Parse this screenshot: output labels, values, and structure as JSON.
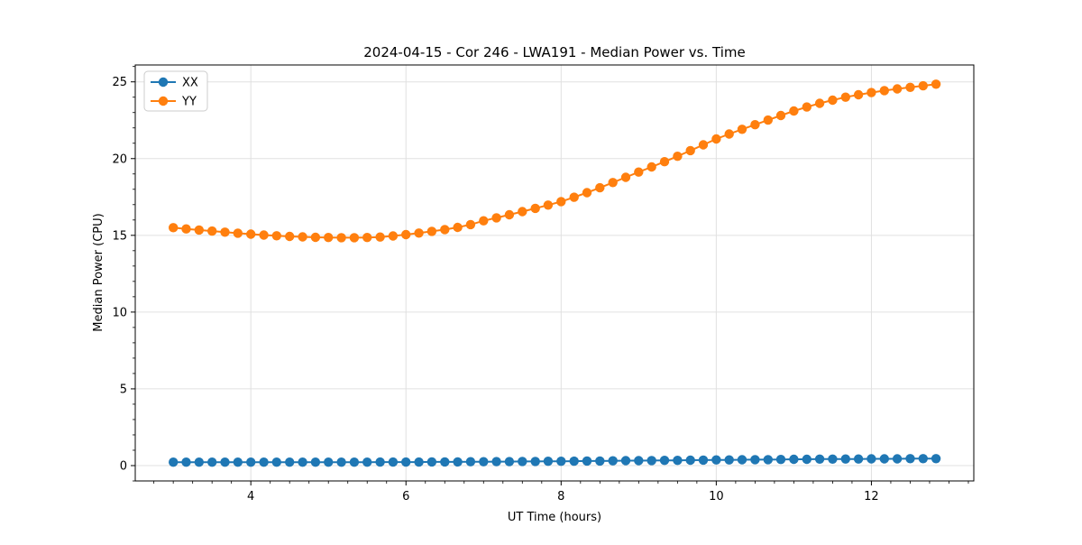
{
  "chart_data": {
    "type": "line",
    "title": "2024-04-15 - Cor 246 - LWA191 - Median Power vs. Time",
    "xlabel": "UT Time (hours)",
    "ylabel": "Median Power (CPU)",
    "xlim": [
      2.51,
      13.32
    ],
    "ylim": [
      -1.0,
      26.1
    ],
    "x_major_ticks": [
      4,
      6,
      8,
      10,
      12
    ],
    "x_minor_tick_step": 0.25,
    "y_major_ticks": [
      0,
      5,
      10,
      15,
      20,
      25
    ],
    "y_minor_tick_step": 1,
    "grid": true,
    "legend_position": "upper-left",
    "x": [
      3.0,
      3.167,
      3.333,
      3.5,
      3.667,
      3.833,
      4.0,
      4.167,
      4.333,
      4.5,
      4.667,
      4.833,
      5.0,
      5.167,
      5.333,
      5.5,
      5.667,
      5.833,
      6.0,
      6.167,
      6.333,
      6.5,
      6.667,
      6.833,
      7.0,
      7.167,
      7.333,
      7.5,
      7.667,
      7.833,
      8.0,
      8.167,
      8.333,
      8.5,
      8.667,
      8.833,
      9.0,
      9.167,
      9.333,
      9.5,
      9.667,
      9.833,
      10.0,
      10.167,
      10.333,
      10.5,
      10.667,
      10.833,
      11.0,
      11.167,
      11.333,
      11.5,
      11.667,
      11.833,
      12.0,
      12.167,
      12.333,
      12.5,
      12.667,
      12.833
    ],
    "series": [
      {
        "name": "XX",
        "color": "#1f77b4",
        "values": [
          0.22,
          0.22,
          0.22,
          0.22,
          0.22,
          0.22,
          0.22,
          0.22,
          0.22,
          0.22,
          0.22,
          0.22,
          0.22,
          0.22,
          0.22,
          0.22,
          0.23,
          0.23,
          0.23,
          0.23,
          0.24,
          0.24,
          0.24,
          0.25,
          0.25,
          0.26,
          0.26,
          0.27,
          0.27,
          0.28,
          0.28,
          0.29,
          0.3,
          0.3,
          0.31,
          0.32,
          0.32,
          0.33,
          0.34,
          0.34,
          0.35,
          0.36,
          0.37,
          0.37,
          0.38,
          0.39,
          0.39,
          0.4,
          0.41,
          0.41,
          0.42,
          0.42,
          0.43,
          0.43,
          0.44,
          0.44,
          0.44,
          0.45,
          0.45,
          0.45
        ]
      },
      {
        "name": "YY",
        "color": "#ff7f0e",
        "values": [
          15.5,
          15.42,
          15.35,
          15.28,
          15.21,
          15.14,
          15.08,
          15.02,
          14.97,
          14.93,
          14.9,
          14.87,
          14.86,
          14.85,
          14.85,
          14.86,
          14.89,
          14.96,
          15.05,
          15.15,
          15.26,
          15.38,
          15.52,
          15.7,
          15.95,
          16.14,
          16.34,
          16.55,
          16.76,
          16.97,
          17.2,
          17.48,
          17.78,
          18.1,
          18.44,
          18.78,
          19.12,
          19.46,
          19.8,
          20.15,
          20.52,
          20.9,
          21.28,
          21.6,
          21.91,
          22.21,
          22.51,
          22.81,
          23.1,
          23.36,
          23.6,
          23.81,
          24.0,
          24.16,
          24.3,
          24.43,
          24.54,
          24.64,
          24.74,
          24.85
        ]
      }
    ]
  }
}
